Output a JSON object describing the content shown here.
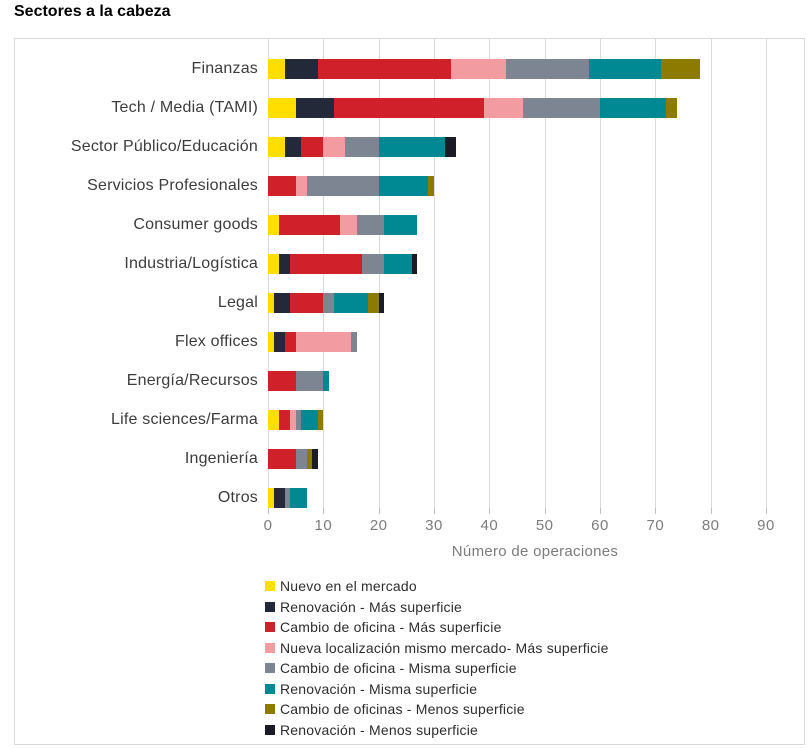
{
  "title": "Sectores a la cabeza",
  "chart_data": {
    "type": "bar",
    "orientation": "horizontal",
    "stacked": true,
    "title": "Sectores a la cabeza",
    "xlabel": "Número de operaciones",
    "ylabel": "",
    "xlim": [
      0,
      90
    ],
    "xticks": [
      0,
      10,
      20,
      30,
      40,
      50,
      60,
      70,
      80,
      90
    ],
    "plot_units_span": 96.5,
    "grid": true,
    "legend_position": "bottom-left",
    "categories": [
      "Finanzas",
      "Tech / Media (TAMI)",
      "Sector Público/Educación",
      "Servicios Profesionales",
      "Consumer goods",
      "Industria/Logística",
      "Legal",
      "Flex offices",
      "Energía/Recursos",
      "Life sciences/Farma",
      "Ingeniería",
      "Otros"
    ],
    "series": [
      {
        "name": "Nuevo en el mercado",
        "color": "#FFDE00",
        "values": [
          3,
          5,
          3,
          0,
          2,
          2,
          1,
          1,
          0,
          2,
          0,
          1
        ]
      },
      {
        "name": "Renovación - Más superficie",
        "color": "#232939",
        "values": [
          6,
          7,
          3,
          0,
          0,
          2,
          3,
          2,
          0,
          0,
          0,
          2
        ]
      },
      {
        "name": "Cambio de oficina - Más superficie",
        "color": "#D0212A",
        "values": [
          24,
          27,
          4,
          5,
          11,
          13,
          6,
          2,
          5,
          2,
          5,
          0
        ]
      },
      {
        "name": "Nueva localización mismo mercado- Más superficie",
        "color": "#F29CA2",
        "values": [
          10,
          7,
          4,
          2,
          3,
          0,
          0,
          10,
          0,
          1,
          0,
          0
        ]
      },
      {
        "name": "Cambio de oficina - Misma superficie",
        "color": "#7D8592",
        "values": [
          15,
          14,
          6,
          13,
          5,
          4,
          2,
          1,
          5,
          1,
          2,
          1
        ]
      },
      {
        "name": "Renovación - Misma superficie",
        "color": "#008993",
        "values": [
          13,
          12,
          12,
          9,
          6,
          5,
          6,
          0,
          1,
          3,
          0,
          3
        ]
      },
      {
        "name": "Cambio de oficinas - Menos superficie",
        "color": "#8C7B00",
        "values": [
          7,
          2,
          0,
          1,
          0,
          0,
          2,
          0,
          0,
          1,
          1,
          0
        ]
      },
      {
        "name": "Renovación - Menos superficie",
        "color": "#1A1B26",
        "values": [
          0,
          0,
          2,
          0,
          0,
          1,
          1,
          0,
          0,
          0,
          1,
          0
        ]
      }
    ]
  }
}
